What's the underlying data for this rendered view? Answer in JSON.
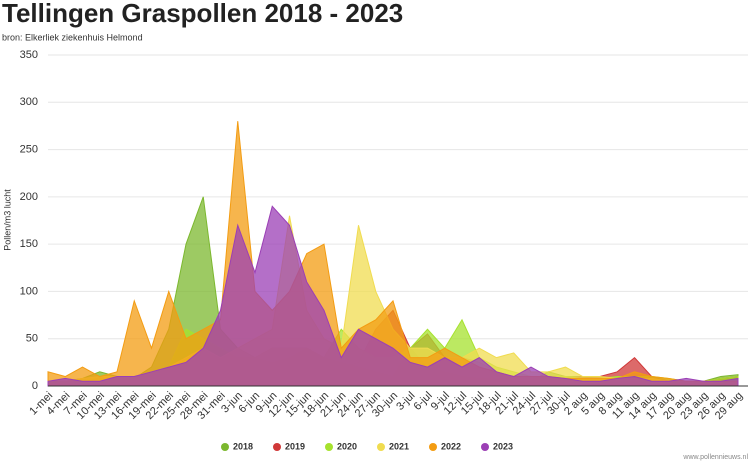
{
  "chart_data": {
    "type": "area",
    "title": "Tellingen Graspollen 2018 - 2023",
    "subtitle": "bron: Elkerliek ziekenhuis Helmond",
    "y_label": "Pollen/m3 lucht",
    "source": "www.pollennieuws.nl",
    "categories": [
      "1-mei",
      "4-mei",
      "7-mei",
      "10-mei",
      "13-mei",
      "16-mei",
      "19-mei",
      "22-mei",
      "25-mei",
      "28-mei",
      "31-mei",
      "3-jun",
      "6-jun",
      "9-jun",
      "12-jun",
      "15-jun",
      "18-jun",
      "21-jun",
      "24-jun",
      "27-jun",
      "30-jun",
      "3-jul",
      "6-jul",
      "9-jul",
      "12-jul",
      "15-jul",
      "18-jul",
      "21-jul",
      "24-jul",
      "27-jul",
      "30-jul",
      "2 aug",
      "5 aug",
      "8 aug",
      "11 aug",
      "14 aug",
      "17 aug",
      "20 aug",
      "23 aug",
      "26 aug",
      "29 aug"
    ],
    "series": [
      {
        "name": "2018",
        "color": "#7cb82f",
        "values": [
          5,
          5,
          8,
          15,
          10,
          8,
          20,
          60,
          150,
          200,
          60,
          40,
          30,
          25,
          30,
          40,
          30,
          25,
          20,
          15,
          10,
          40,
          20,
          15,
          10,
          8,
          8,
          5,
          5,
          15,
          10,
          10,
          8,
          5,
          5,
          5,
          5,
          5,
          5,
          10,
          12
        ]
      },
      {
        "name": "2019",
        "color": "#d03838",
        "values": [
          5,
          5,
          5,
          8,
          5,
          5,
          10,
          10,
          15,
          20,
          20,
          30,
          25,
          20,
          20,
          25,
          30,
          20,
          25,
          60,
          80,
          40,
          55,
          30,
          30,
          25,
          15,
          10,
          10,
          8,
          8,
          10,
          10,
          15,
          30,
          10,
          5,
          5,
          5,
          8,
          10
        ]
      },
      {
        "name": "2020",
        "color": "#a6e22e",
        "values": [
          5,
          5,
          5,
          10,
          10,
          10,
          15,
          20,
          60,
          50,
          40,
          30,
          30,
          40,
          40,
          40,
          30,
          60,
          40,
          30,
          30,
          40,
          60,
          40,
          70,
          30,
          20,
          15,
          10,
          10,
          10,
          8,
          8,
          10,
          10,
          10,
          8,
          5,
          5,
          8,
          10
        ]
      },
      {
        "name": "2021",
        "color": "#f0dc50",
        "values": [
          5,
          5,
          8,
          10,
          10,
          10,
          15,
          20,
          30,
          40,
          30,
          40,
          50,
          60,
          180,
          80,
          50,
          40,
          170,
          100,
          60,
          40,
          40,
          30,
          30,
          40,
          30,
          35,
          15,
          15,
          20,
          10,
          10,
          8,
          8,
          8,
          5,
          5,
          5,
          5,
          5
        ]
      },
      {
        "name": "2022",
        "color": "#f39c12",
        "values": [
          15,
          10,
          20,
          10,
          15,
          90,
          40,
          100,
          50,
          60,
          70,
          280,
          100,
          80,
          100,
          140,
          150,
          40,
          60,
          70,
          90,
          30,
          30,
          40,
          30,
          20,
          15,
          10,
          10,
          10,
          8,
          8,
          8,
          8,
          15,
          10,
          8,
          5,
          5,
          5,
          5
        ]
      },
      {
        "name": "2023",
        "color": "#9b3fb5",
        "values": [
          5,
          8,
          5,
          5,
          10,
          10,
          15,
          20,
          25,
          40,
          80,
          170,
          120,
          190,
          170,
          110,
          80,
          30,
          60,
          50,
          40,
          25,
          20,
          30,
          20,
          30,
          15,
          10,
          20,
          10,
          8,
          5,
          5,
          8,
          10,
          5,
          5,
          8,
          5,
          5,
          8
        ]
      }
    ],
    "ylim": [
      0,
      350
    ],
    "yticks": [
      0,
      50,
      100,
      150,
      200,
      250,
      300,
      350
    ],
    "grid": true,
    "legend": "bottom"
  }
}
